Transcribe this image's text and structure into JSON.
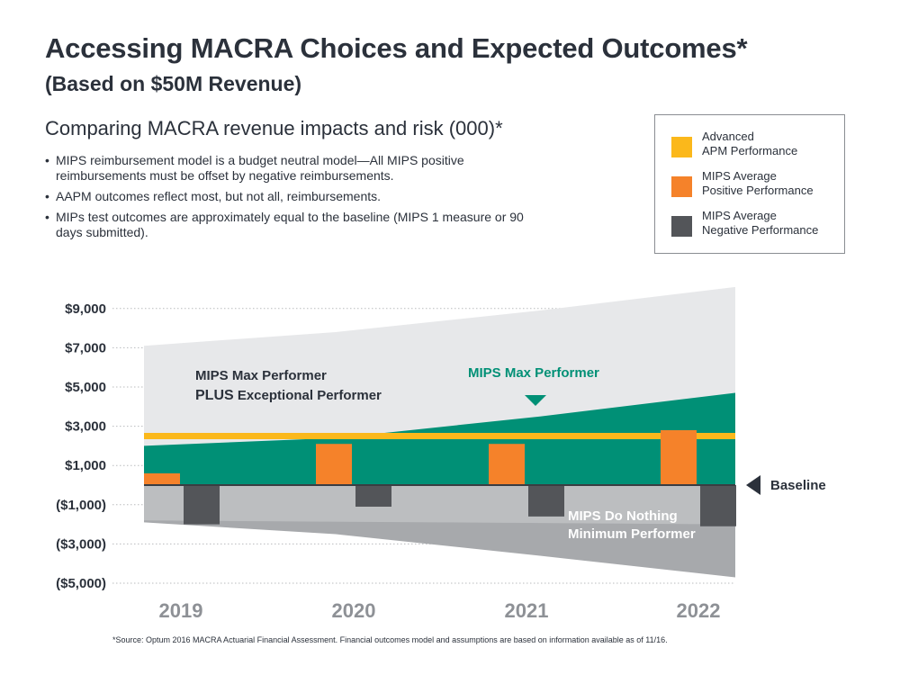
{
  "header": {
    "title": "Accessing MACRA Choices and Expected Outcomes*",
    "subtitle": "(Based on $50M Revenue)"
  },
  "section": {
    "heading": "Comparing MACRA revenue impacts and risk (000)*",
    "notes": [
      "MIPS reimbursement model is a budget neutral model—All MIPS positive reimbursements must be offset by negative reimbursements.",
      "AAPM outcomes reflect most, but not all, reimbursements.",
      "MIPs test outcomes are approximately equal to the baseline (MIPS 1 measure or 90 days submitted)."
    ]
  },
  "legend": [
    {
      "label": "Advanced\nAPM Performance",
      "color": "#fbb81b"
    },
    {
      "label": "MIPS Average\nPositive Performance",
      "color": "#f5822a"
    },
    {
      "label": "MIPS Average\nNegative Performance",
      "color": "#535559"
    }
  ],
  "chart_data": {
    "type": "bar",
    "categories": [
      "2019",
      "2020",
      "2021",
      "2022"
    ],
    "y_ticks": [
      "$9,000",
      "$7,000",
      "$5,000",
      "$3,000",
      "$1,000",
      "($1,000)",
      "($3,000)",
      "($5,000)"
    ],
    "y_tick_values": [
      9000,
      7000,
      5000,
      3000,
      1000,
      -1000,
      -3000,
      -5000
    ],
    "ylim": [
      -5000,
      10000
    ],
    "grid": true,
    "series": [
      {
        "name": "MIPS Average Positive Performance",
        "values": [
          600,
          2100,
          2100,
          2800
        ],
        "color": "#f5822a"
      },
      {
        "name": "MIPS Average Negative Performance",
        "values": [
          -2000,
          -1100,
          -1600,
          -2100
        ],
        "color": "#535559"
      },
      {
        "name": "Advanced APM Performance",
        "values": [
          2500,
          2500,
          2500,
          2500
        ],
        "color": "#fbb81b"
      }
    ],
    "bands": {
      "max_plus_exceptional_upper": [
        7100,
        7800,
        8900,
        10100
      ],
      "max_performer_upper": [
        2000,
        2400,
        3500,
        4700
      ],
      "do_nothing_lower": [
        -1900,
        -2500,
        -3600,
        -4700
      ],
      "colors": {
        "exceptional": "#e7e8ea",
        "max": "#009076",
        "do_nothing": "#a7a9ac",
        "do_nothing_base": "#bcbec0"
      }
    },
    "annotations": {
      "max_plus_line1": "MIPS Max Performer",
      "max_plus_line2_bold": "PLUS",
      "max_plus_line2_rest": " Exceptional Performer",
      "max_performer": "MIPS Max Performer",
      "do_nothing_line1": "MIPS Do Nothing",
      "do_nothing_line2": "Minimum Performer",
      "baseline": "Baseline"
    }
  },
  "footer": {
    "source": "*Source: Optum 2016 MACRA Actuarial Financial Assessment. Financial outcomes model and assumptions are based on information available as of 11/16."
  }
}
